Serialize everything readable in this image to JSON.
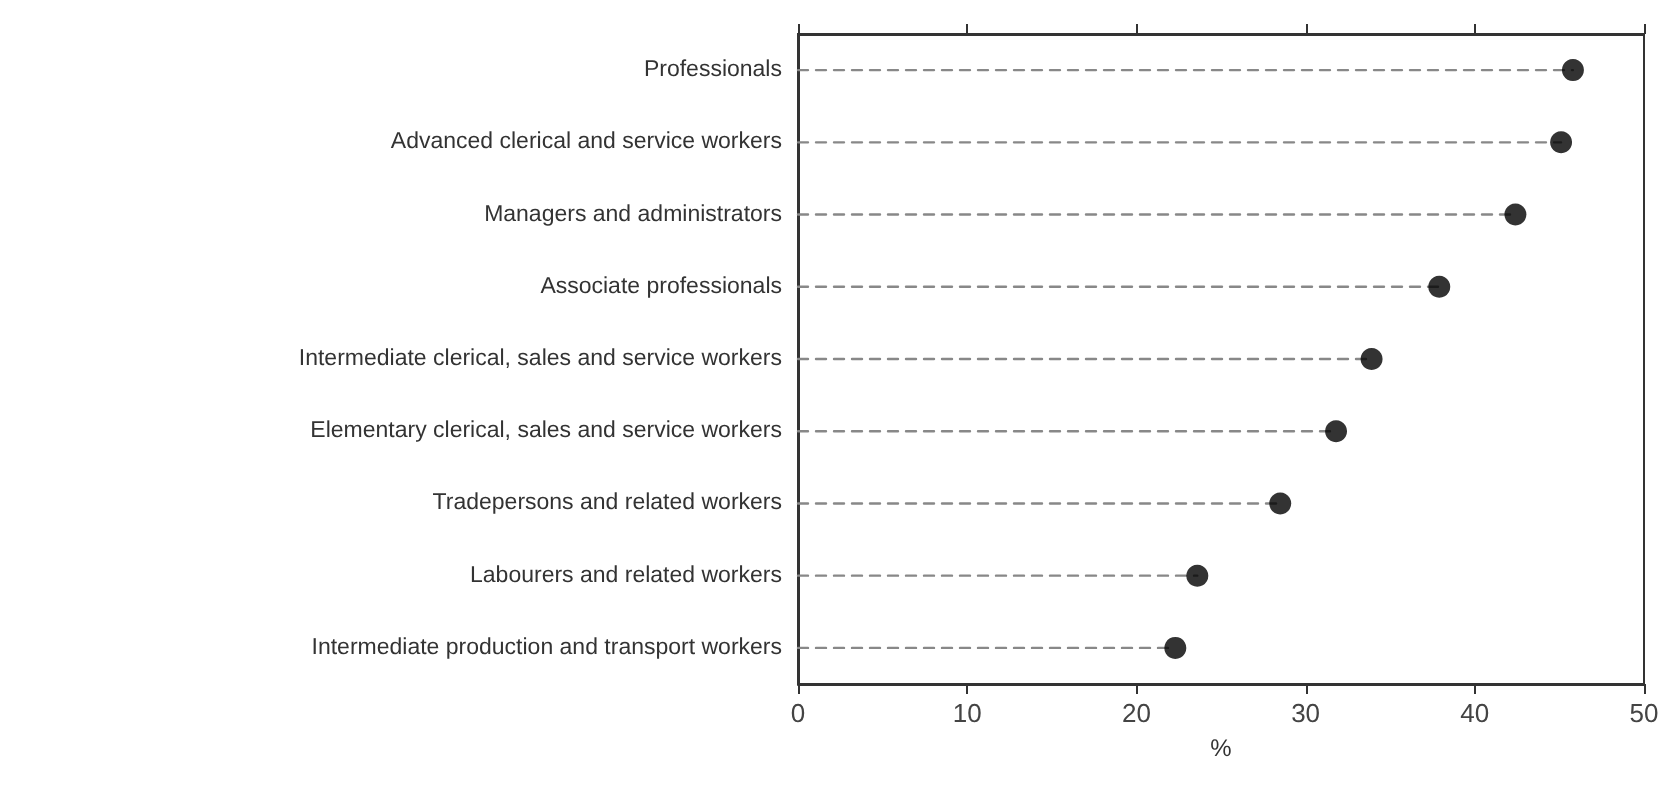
{
  "chart_data": {
    "type": "lollipop",
    "orientation": "horizontal",
    "xlabel": "%",
    "categories": [
      "Professionals",
      "Advanced clerical and service workers",
      "Managers and administrators",
      "Associate professionals",
      "Intermediate clerical, sales and service workers",
      "Elementary clerical, sales and service workers",
      "Tradepersons and related workers",
      "Labourers and related workers",
      "Intermediate production and transport workers"
    ],
    "values": [
      45.8,
      45.1,
      42.4,
      37.9,
      33.9,
      31.8,
      28.5,
      23.6,
      22.3
    ],
    "color": "#000000",
    "xlim": [
      0,
      50
    ],
    "xticks": [
      0,
      10,
      20,
      30,
      40,
      50
    ],
    "marker": "circle",
    "line_style": "dashed",
    "grid": false
  }
}
